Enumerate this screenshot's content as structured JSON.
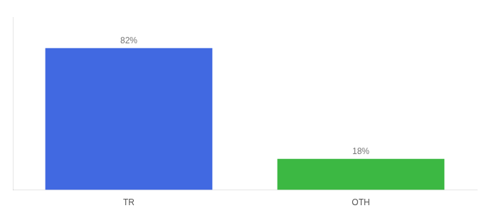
{
  "chart_data": {
    "type": "bar",
    "categories": [
      "TR",
      "OTH"
    ],
    "values": [
      82,
      18
    ],
    "value_labels": [
      "82%",
      "18%"
    ],
    "colors": [
      "#4169E1",
      "#3CB843"
    ],
    "ylim": [
      0,
      100
    ],
    "grid": false,
    "tick_labels": "x",
    "data_labels": true
  }
}
